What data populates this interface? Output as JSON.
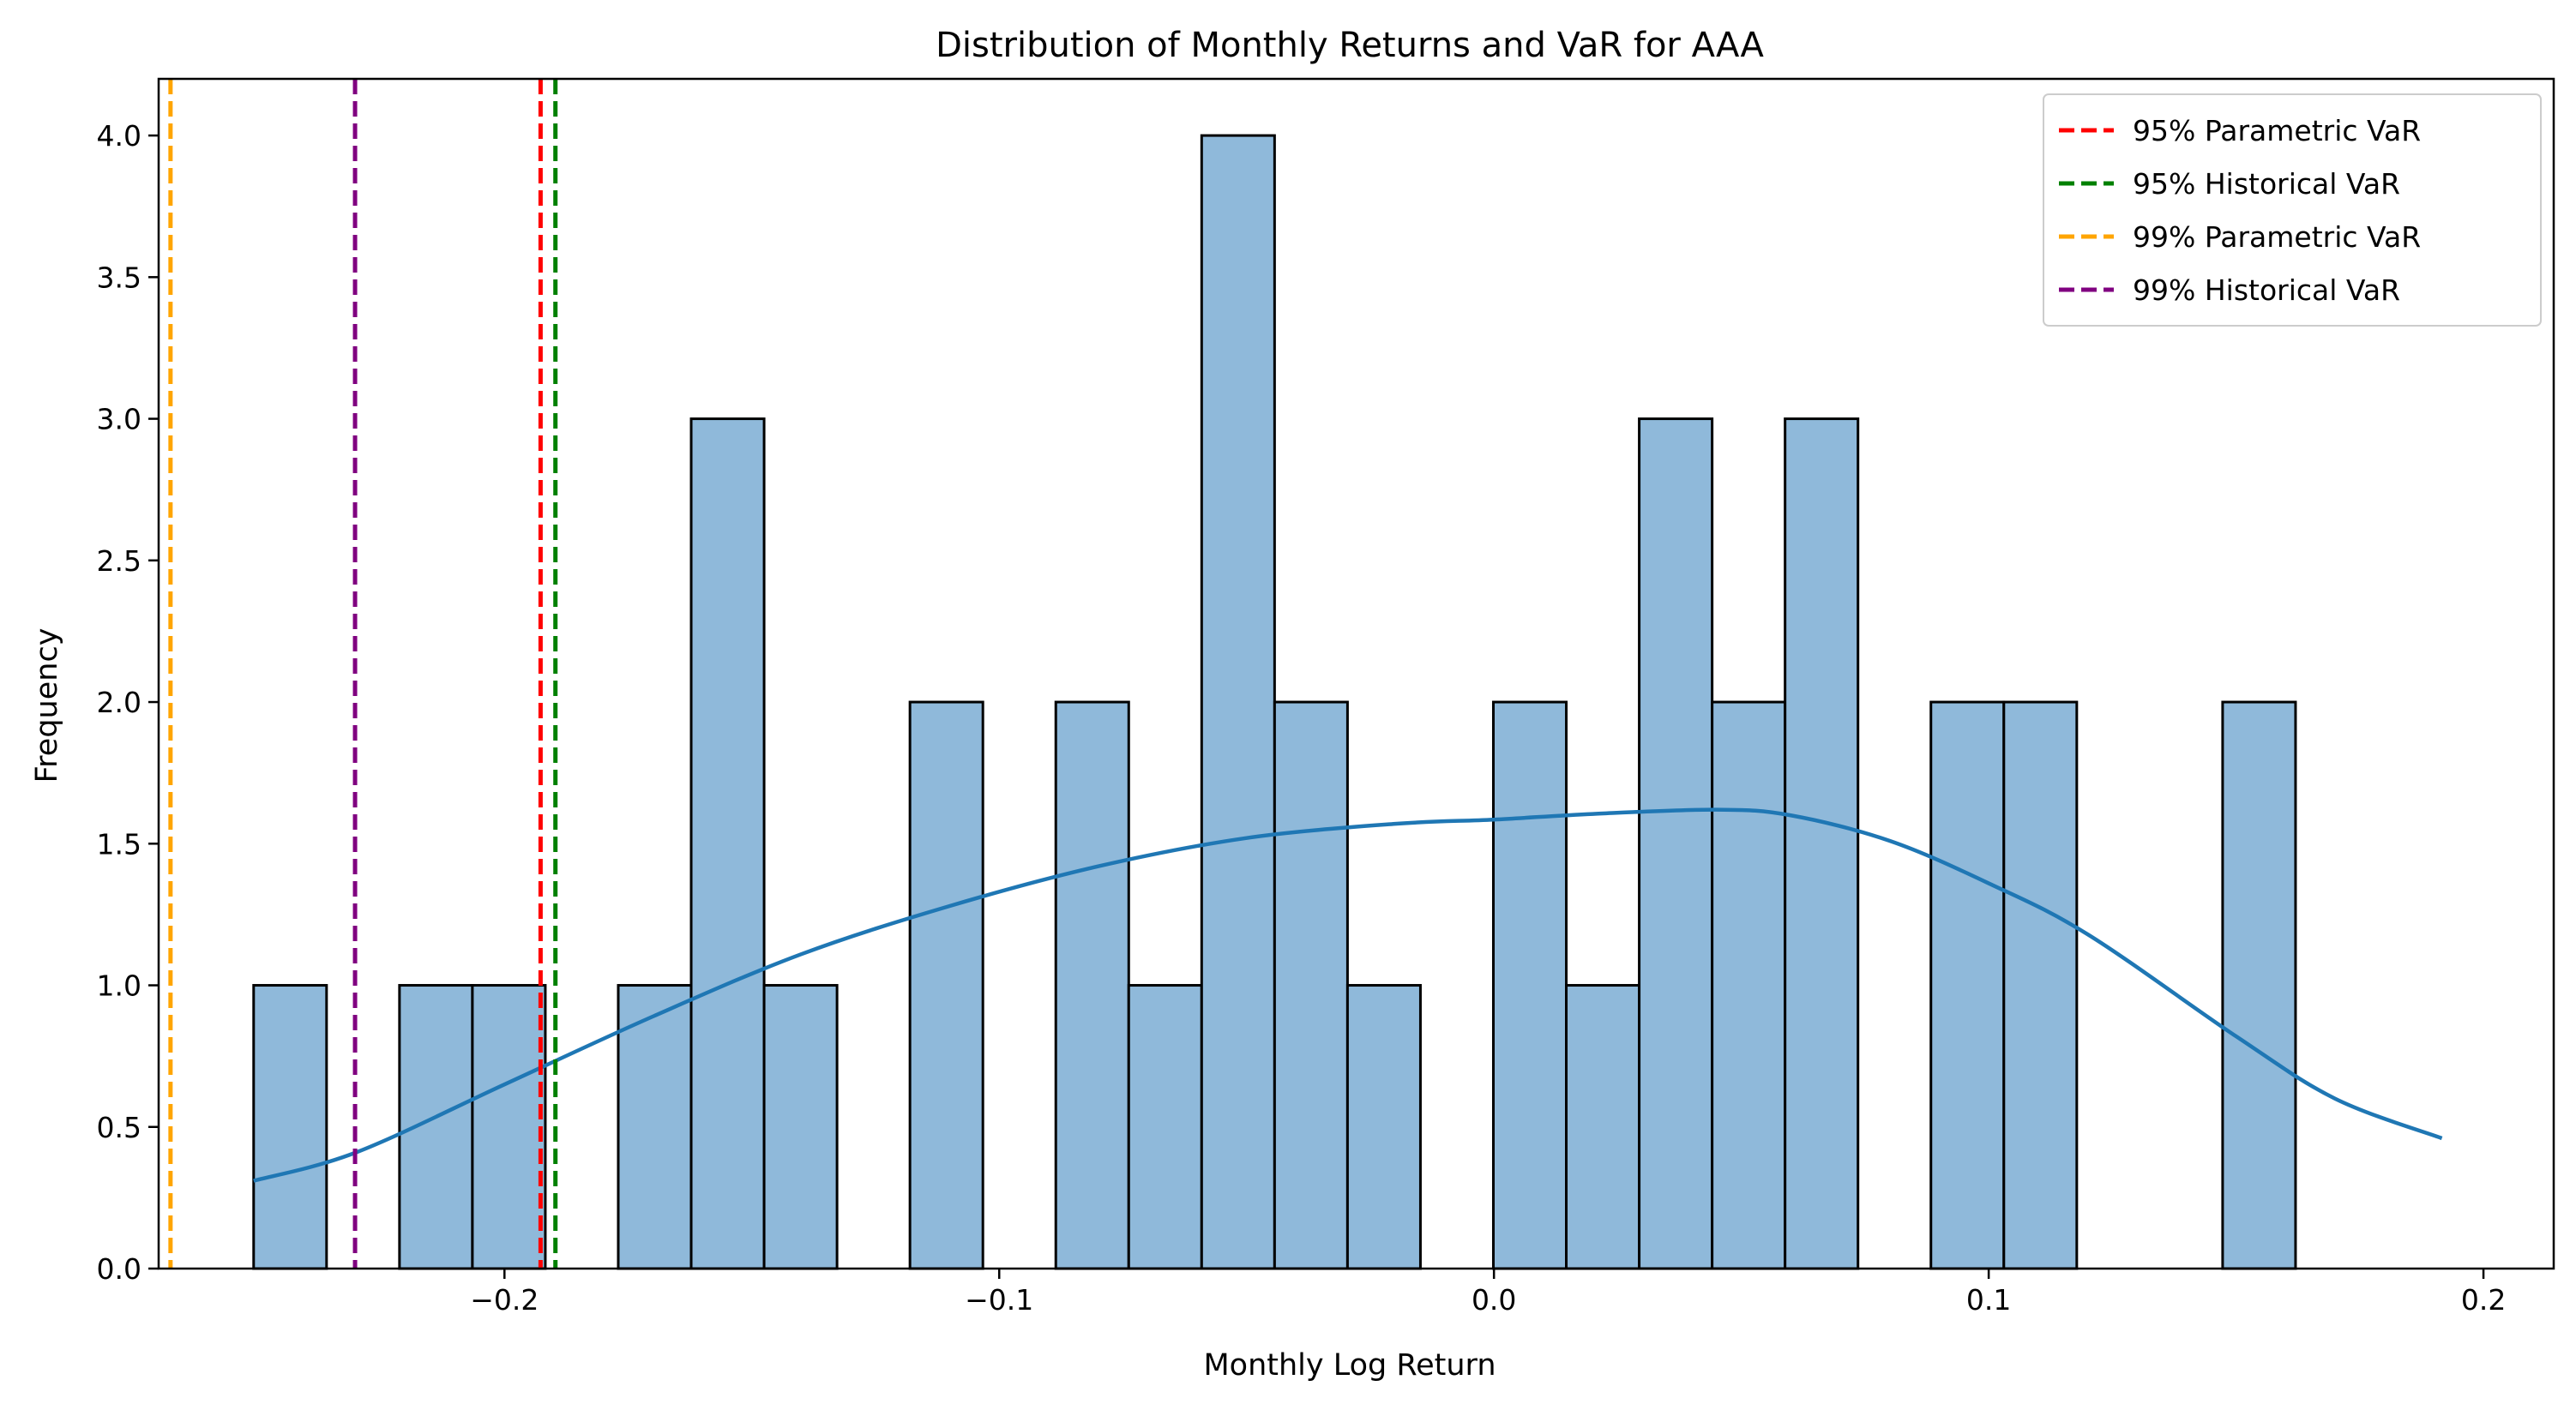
{
  "chart_data": {
    "type": "histogram",
    "title": "Distribution of Monthly Returns and VaR for AAA",
    "xlabel": "Monthly Log Return",
    "ylabel": "Frequency",
    "xlim": [
      -0.2699,
      0.2142
    ],
    "ylim": [
      0,
      4.2
    ],
    "x_ticks": [
      -0.2,
      -0.1,
      0.0,
      0.1,
      0.2
    ],
    "x_tick_labels": [
      "−0.2",
      "−0.1",
      "0.0",
      "0.1",
      "0.2"
    ],
    "y_ticks": [
      0.0,
      0.5,
      1.0,
      1.5,
      2.0,
      2.5,
      3.0,
      3.5,
      4.0
    ],
    "y_tick_labels": [
      "0.0",
      "0.5",
      "1.0",
      "1.5",
      "2.0",
      "2.5",
      "3.0",
      "3.5",
      "4.0"
    ],
    "bin_start": -0.2507,
    "bin_width": 0.01474,
    "counts": [
      1,
      0,
      1,
      1,
      0,
      1,
      3,
      1,
      0,
      2,
      0,
      2,
      1,
      4,
      2,
      1,
      0,
      2,
      1,
      3,
      2,
      3,
      0,
      2,
      2,
      0,
      0,
      2
    ],
    "bar_color": "#8fb9da",
    "bar_edge_color": "#000000",
    "kde": {
      "color": "#1f77b4",
      "x": [
        -0.2507,
        -0.23,
        -0.2,
        -0.17,
        -0.14,
        -0.11,
        -0.08,
        -0.05,
        -0.02,
        0.0,
        0.02,
        0.045,
        0.06,
        0.08,
        0.1,
        0.12,
        0.15,
        0.17,
        0.1916
      ],
      "y": [
        0.31,
        0.41,
        0.65,
        0.89,
        1.11,
        1.28,
        1.42,
        1.52,
        1.57,
        1.585,
        1.605,
        1.62,
        1.6,
        1.51,
        1.36,
        1.18,
        0.82,
        0.6,
        0.46
      ]
    },
    "var_lines": [
      {
        "label": "95% Parametric VaR",
        "x": -0.1927,
        "color": "#ff0000"
      },
      {
        "label": "95% Historical VaR",
        "x": -0.1897,
        "color": "#008000"
      },
      {
        "label": "99% Parametric VaR",
        "x": -0.2675,
        "color": "#ffa500"
      },
      {
        "label": "99% Historical VaR",
        "x": -0.2302,
        "color": "#800080"
      }
    ],
    "legend_position": "top-right"
  }
}
